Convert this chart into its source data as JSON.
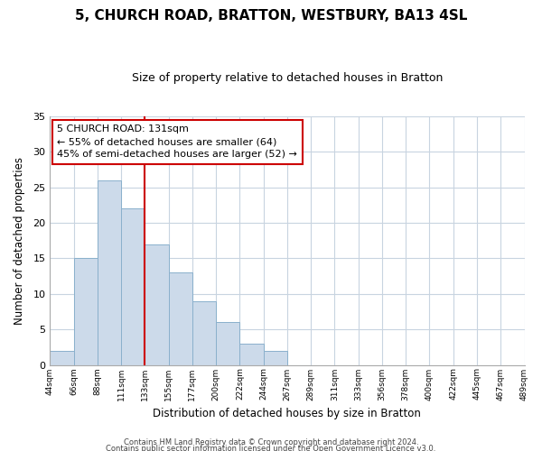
{
  "title": "5, CHURCH ROAD, BRATTON, WESTBURY, BA13 4SL",
  "subtitle": "Size of property relative to detached houses in Bratton",
  "xlabel": "Distribution of detached houses by size in Bratton",
  "ylabel": "Number of detached properties",
  "bar_values": [
    2,
    15,
    26,
    22,
    17,
    13,
    9,
    6,
    3,
    2,
    0,
    0,
    0,
    0,
    0,
    0,
    0,
    0,
    0,
    0
  ],
  "bin_labels": [
    "44sqm",
    "66sqm",
    "88sqm",
    "111sqm",
    "133sqm",
    "155sqm",
    "177sqm",
    "200sqm",
    "222sqm",
    "244sqm",
    "267sqm",
    "289sqm",
    "311sqm",
    "333sqm",
    "356sqm",
    "378sqm",
    "400sqm",
    "422sqm",
    "445sqm",
    "467sqm",
    "489sqm"
  ],
  "bar_color": "#ccdaea",
  "bar_edge_color": "#8ab0cc",
  "vline_color": "#cc0000",
  "annotation_text": "5 CHURCH ROAD: 131sqm\n← 55% of detached houses are smaller (64)\n45% of semi-detached houses are larger (52) →",
  "annotation_box_color": "white",
  "annotation_box_edge": "#cc0000",
  "ylim": [
    0,
    35
  ],
  "yticks": [
    0,
    5,
    10,
    15,
    20,
    25,
    30,
    35
  ],
  "footer_line1": "Contains HM Land Registry data © Crown copyright and database right 2024.",
  "footer_line2": "Contains public sector information licensed under the Open Government Licence v3.0.",
  "background_color": "#ffffff",
  "grid_color": "#c8d4e0"
}
